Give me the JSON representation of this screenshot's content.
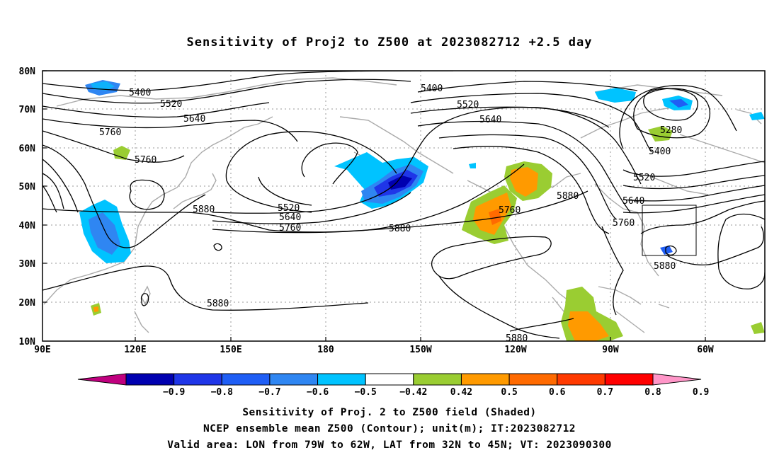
{
  "title": "Sensitivity of Proj2 to Z500 at 2023082712 +2.5 day",
  "lat_ticks": [
    "80N",
    "70N",
    "60N",
    "50N",
    "40N",
    "30N",
    "20N",
    "10N"
  ],
  "lon_ticks": [
    "90E",
    "120E",
    "150E",
    "180",
    "150W",
    "120W",
    "90W",
    "60W"
  ],
  "contour_labels": [
    "5400",
    "5520",
    "5640",
    "5760",
    "5760",
    "5880",
    "5520",
    "5640",
    "5760",
    "5400",
    "5520",
    "5640",
    "5760",
    "5880",
    "5880",
    "5880",
    "5280",
    "5400",
    "5520",
    "5640",
    "5760",
    "5880",
    "5880"
  ],
  "colorbar": {
    "labels": [
      "-0.9",
      "-0.8",
      "-0.7",
      "-0.6",
      "-0.5",
      "-0.42",
      "0.42",
      "0.5",
      "0.6",
      "0.7",
      "0.8",
      "0.9"
    ],
    "colors": [
      "#c0007f",
      "#0000b0",
      "#1f36e8",
      "#1f5ef5",
      "#2f86f2",
      "#00c3ff",
      "#ffffff",
      "#9acd32",
      "#ff9a00",
      "#ff6a00",
      "#ff3a00",
      "#ff0000",
      "#ff96c8"
    ]
  },
  "caption": {
    "line1": "Sensitivity of Proj. 2 to Z500 field (Shaded)",
    "line2": "NCEP ensemble mean Z500 (Contour); unit(m); IT:2023082712",
    "line3": "Valid area: LON from 79W to 62W, LAT from 32N to 45N; VT: 2023090300"
  }
}
